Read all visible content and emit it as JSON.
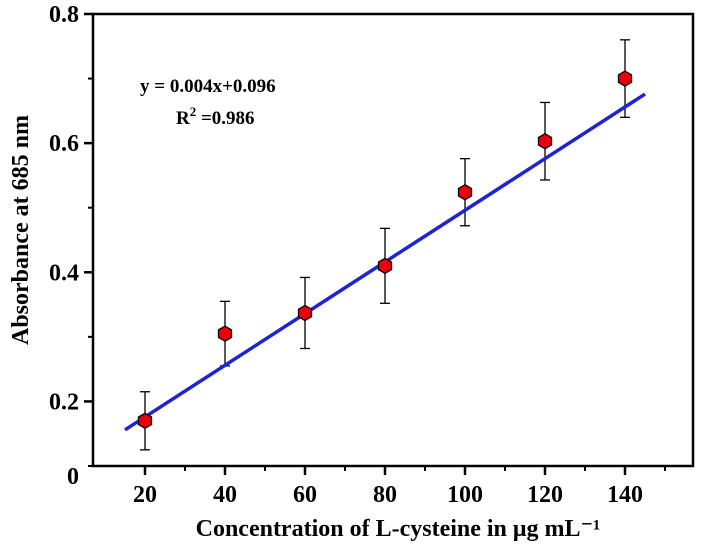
{
  "chart_data": {
    "type": "scatter",
    "title": "",
    "xlabel": "Concentration of L-cysteine in μg mL⁻¹",
    "ylabel": "Absorbance at 685 nm",
    "xlim": [
      7,
      157
    ],
    "ylim": [
      0.1,
      0.8
    ],
    "x_ticks": [
      20,
      40,
      60,
      80,
      100,
      120,
      140
    ],
    "y_ticks": [
      0.2,
      0.4,
      0.6,
      0.8
    ],
    "y_ticks_minor": [
      0.1,
      0.3,
      0.5,
      0.7
    ],
    "x_ticks_minor": [
      30,
      50,
      70,
      90,
      110,
      130,
      150
    ],
    "origin_label": "0",
    "series": [
      {
        "name": "Absorbance",
        "x": [
          20,
          40,
          60,
          80,
          100,
          120,
          140
        ],
        "y": [
          0.17,
          0.305,
          0.337,
          0.41,
          0.524,
          0.603,
          0.7
        ],
        "yerr": [
          0.045,
          0.05,
          0.055,
          0.058,
          0.052,
          0.06,
          0.06
        ],
        "marker_color": "#e8000b"
      }
    ],
    "fit": {
      "slope": 0.004,
      "intercept": 0.096,
      "x_range": [
        15,
        145
      ],
      "line_color": "#1f23d6",
      "equation_label": "y = 0.004x+0.096",
      "r2_label_prefix": "R",
      "r2_label_sup": "2",
      "r2_label_value": " =0.986"
    }
  }
}
